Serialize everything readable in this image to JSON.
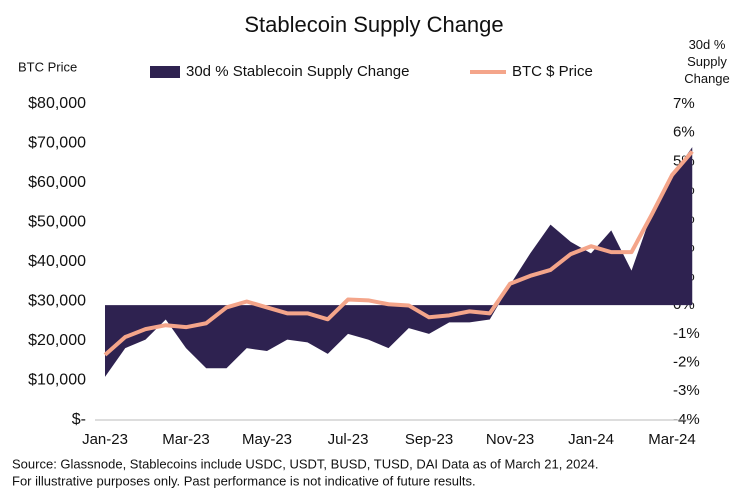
{
  "chart_data": {
    "type": "combo",
    "title": "Stablecoin Supply Change",
    "y_label": "BTC Price",
    "y2_label": "30d % Supply Change",
    "categories": [
      "Jan-23",
      null,
      null,
      null,
      "Mar-23",
      null,
      null,
      null,
      "May-23",
      null,
      null,
      null,
      "Jul-23",
      null,
      null,
      null,
      "Sep-23",
      null,
      null,
      null,
      "Nov-23",
      null,
      null,
      null,
      "Jan-24",
      null,
      null,
      null,
      "Mar-24",
      null
    ],
    "series": [
      {
        "name": "30d % Stablecoin Supply Change",
        "type": "area",
        "axis": "y2",
        "color": "#2e2250",
        "values": [
          -2.5,
          -1.5,
          -1.2,
          -0.5,
          -1.5,
          -2.2,
          -2.2,
          -1.5,
          -1.6,
          -1.2,
          -1.3,
          -1.7,
          -1.0,
          -1.2,
          -1.5,
          -0.8,
          -1.0,
          -0.6,
          -0.6,
          -0.5,
          0.7,
          1.8,
          2.8,
          2.2,
          1.8,
          2.6,
          1.2,
          3.2,
          4.5,
          5.5
        ]
      },
      {
        "name": "BTC $ Price",
        "type": "line",
        "color": "#f4a58a",
        "values": [
          16500,
          21000,
          23000,
          24000,
          23500,
          24500,
          28500,
          30000,
          28500,
          27000,
          27000,
          25500,
          30500,
          30300,
          29300,
          29000,
          26000,
          26500,
          27500,
          27000,
          34500,
          36500,
          38000,
          42000,
          44000,
          42500,
          42500,
          52000,
          62000,
          68000
        ]
      }
    ],
    "ylim": [
      0,
      80000
    ],
    "yticks": [
      {
        "value": 0,
        "label": "$-"
      },
      {
        "value": 10000,
        "label": "$10,000"
      },
      {
        "value": 20000,
        "label": "$20,000"
      },
      {
        "value": 30000,
        "label": "$30,000"
      },
      {
        "value": 40000,
        "label": "$40,000"
      },
      {
        "value": 50000,
        "label": "$50,000"
      },
      {
        "value": 60000,
        "label": "$60,000"
      },
      {
        "value": 70000,
        "label": "$70,000"
      },
      {
        "value": 80000,
        "label": "$80,000"
      }
    ],
    "y2lim": [
      -4,
      7
    ],
    "y2ticks": [
      {
        "value": -4,
        "label": "-4%"
      },
      {
        "value": -3,
        "label": "-3%"
      },
      {
        "value": -2,
        "label": "-2%"
      },
      {
        "value": -1,
        "label": "-1%"
      },
      {
        "value": 0,
        "label": "0%"
      },
      {
        "value": 1,
        "label": "1%"
      },
      {
        "value": 2,
        "label": "2%"
      },
      {
        "value": 3,
        "label": "3%"
      },
      {
        "value": 4,
        "label": "4%"
      },
      {
        "value": 5,
        "label": "5%"
      },
      {
        "value": 6,
        "label": "6%"
      },
      {
        "value": 7,
        "label": "7%"
      }
    ],
    "grid": false,
    "notes": [
      "Source: Glassnode, Stablecoins include USDC, USDT, BUSD, TUSD, DAI Data as of March 21, 2024.",
      "For illustrative purposes only. Past performance is not indicative of future results."
    ]
  }
}
